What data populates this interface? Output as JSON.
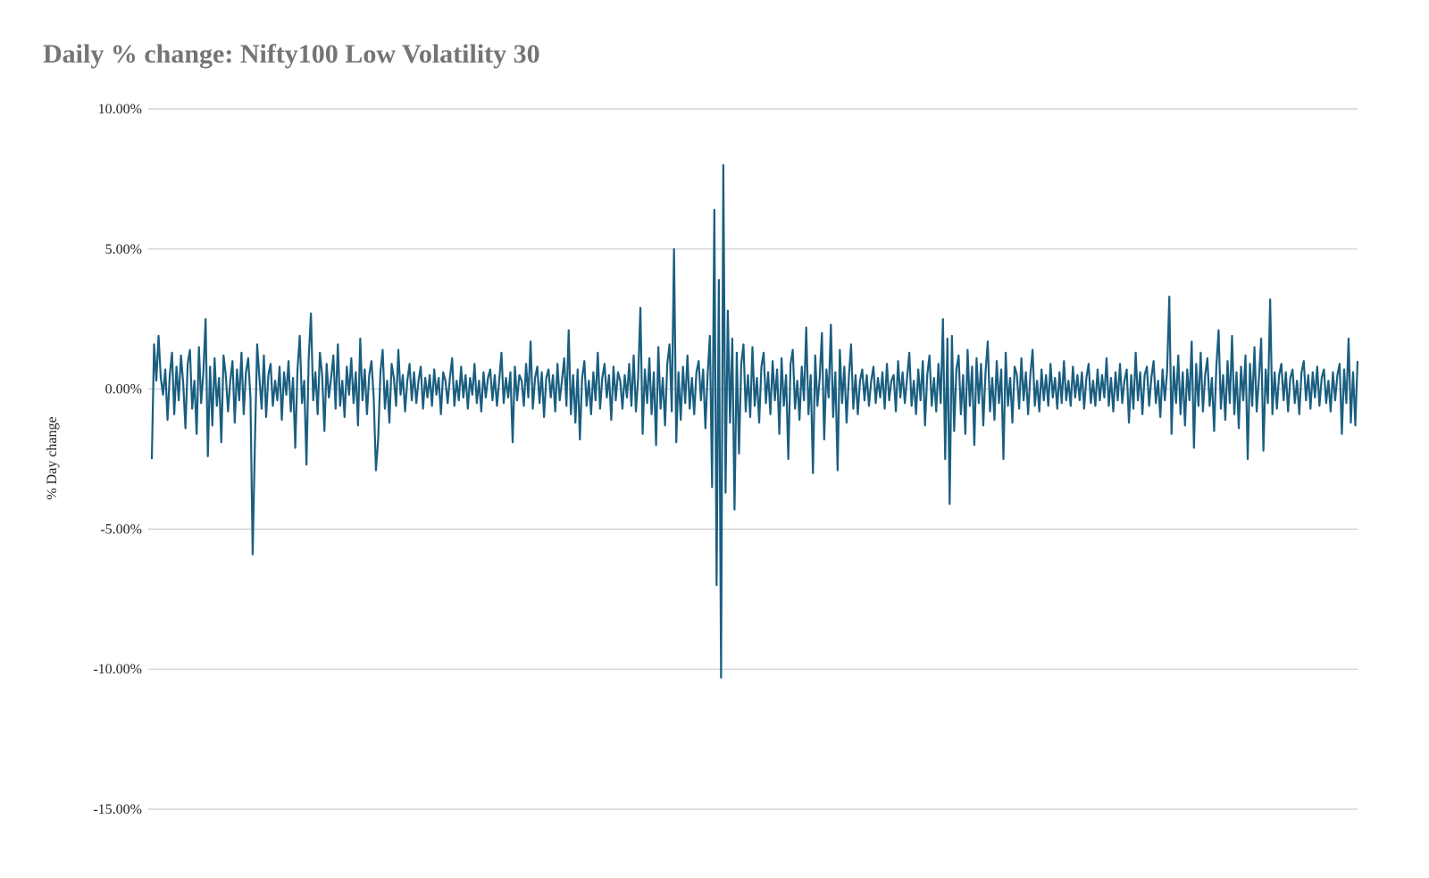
{
  "chart_data": {
    "type": "line",
    "title": "Daily % change: Nifty100 Low Volatility 30",
    "xlabel": "",
    "ylabel": "% Day change",
    "ylim": [
      -15,
      10
    ],
    "yticks": [
      10,
      5,
      0,
      -5,
      -10,
      -15
    ],
    "ytick_labels": [
      "10.00%",
      "5.00%",
      "0.00%",
      "-5.00%",
      "-10.00%",
      "-15.00%"
    ],
    "grid": true,
    "legend": "none",
    "line_color": "#1a5e80",
    "grid_color": "#cccccc",
    "series": [
      {
        "values": [
          -2.5,
          1.6,
          0.3,
          1.9,
          0.4,
          -0.2,
          0.7,
          -1.1,
          0.5,
          1.3,
          -0.9,
          0.8,
          -0.4,
          1.2,
          0.2,
          -1.4,
          0.9,
          1.4,
          -0.7,
          0.3,
          -1.6,
          1.5,
          -0.5,
          0.6,
          2.5,
          -2.4,
          0.8,
          -1.3,
          1.1,
          -0.6,
          0.4,
          -1.9,
          1.2,
          0.5,
          -0.8,
          0.3,
          1.0,
          -1.2,
          0.7,
          -0.4,
          1.3,
          -0.9,
          0.6,
          1.1,
          -0.3,
          -5.9,
          -1.9,
          1.6,
          0.4,
          -0.7,
          1.2,
          -1.0,
          0.5,
          0.9,
          -0.6,
          0.3,
          -0.4,
          0.8,
          -1.1,
          0.6,
          -0.2,
          1.0,
          -0.8,
          0.4,
          -2.1,
          0.7,
          1.9,
          -0.5,
          0.3,
          -2.7,
          1.1,
          2.7,
          -0.4,
          0.6,
          -0.9,
          1.3,
          0.5,
          -1.5,
          0.9,
          -0.3,
          0.4,
          1.2,
          -0.7,
          1.6,
          -0.6,
          0.3,
          -1.0,
          0.8,
          -0.2,
          1.1,
          -0.5,
          0.6,
          -1.3,
          1.8,
          -0.4,
          0.7,
          -0.9,
          0.5,
          1.0,
          -0.3,
          -2.9,
          -1.8,
          0.6,
          1.4,
          -0.7,
          0.3,
          -1.2,
          0.9,
          0.4,
          -0.6,
          1.4,
          -0.2,
          0.5,
          -0.8,
          0.3,
          0.9,
          -0.4,
          0.6,
          -0.5,
          0.3,
          0.8,
          -0.7,
          0.4,
          -0.3,
          0.5,
          -0.6,
          0.7,
          -0.2,
          0.4,
          -0.9,
          0.6,
          0.3,
          -0.5,
          0.4,
          1.1,
          -0.6,
          0.3,
          -0.4,
          0.8,
          -0.3,
          0.5,
          -0.7,
          0.4,
          -0.2,
          0.9,
          -0.5,
          0.3,
          -0.8,
          0.6,
          -0.3,
          0.4,
          0.7,
          -0.4,
          0.5,
          -0.6,
          0.3,
          1.3,
          -0.5,
          0.4,
          -0.3,
          0.6,
          -1.9,
          0.8,
          -0.4,
          0.5,
          0.3,
          -0.6,
          0.9,
          -0.3,
          1.7,
          -0.7,
          0.4,
          0.8,
          -0.5,
          0.6,
          -1.0,
          0.4,
          0.7,
          -0.3,
          0.5,
          -0.8,
          0.9,
          -0.4,
          0.3,
          1.1,
          -0.6,
          2.1,
          -0.9,
          0.5,
          -1.2,
          0.7,
          -1.8,
          0.4,
          1.0,
          -0.6,
          0.3,
          -0.9,
          0.6,
          -0.4,
          1.3,
          -0.7,
          0.4,
          0.9,
          -0.3,
          0.5,
          -1.1,
          0.8,
          -0.4,
          0.6,
          0.3,
          -0.7,
          0.5,
          -0.3,
          0.9,
          -0.6,
          1.2,
          -0.8,
          0.4,
          2.9,
          -1.6,
          0.7,
          -0.5,
          1.1,
          -0.9,
          0.6,
          -2.0,
          1.5,
          -0.7,
          0.4,
          -1.3,
          0.9,
          1.6,
          -0.8,
          5.0,
          -1.9,
          0.6,
          -1.1,
          0.8,
          -0.5,
          1.2,
          -0.7,
          0.4,
          -0.9,
          0.6,
          1.0,
          -0.4,
          0.7,
          -1.4,
          0.5,
          1.9,
          -3.5,
          6.4,
          -7.0,
          3.9,
          -10.3,
          8.0,
          -3.7,
          2.8,
          -1.2,
          1.8,
          -4.3,
          1.3,
          -2.3,
          0.9,
          1.6,
          -0.8,
          0.5,
          -1.0,
          1.5,
          -0.6,
          0.4,
          -1.2,
          0.8,
          1.3,
          -0.5,
          0.6,
          -0.9,
          1.0,
          -0.4,
          0.7,
          -1.6,
          1.1,
          -0.6,
          0.5,
          -2.5,
          0.9,
          1.4,
          -0.7,
          0.3,
          -1.1,
          0.8,
          -0.4,
          2.2,
          -0.9,
          0.5,
          -3.0,
          1.2,
          -0.6,
          0.4,
          2.0,
          -1.8,
          0.7,
          -0.3,
          2.3,
          -1.0,
          0.6,
          -2.9,
          1.4,
          -0.5,
          0.8,
          -1.2,
          0.4,
          1.6,
          -0.7,
          0.5,
          -0.9,
          0.3,
          0.7,
          -0.4,
          0.5,
          -0.6,
          0.3,
          0.8,
          -0.5,
          0.4,
          -0.3,
          0.6,
          -0.7,
          0.9,
          -0.4,
          0.3,
          0.5,
          -0.8,
          1.0,
          -0.3,
          0.6,
          -0.5,
          0.4,
          1.3,
          -0.6,
          0.3,
          -0.9,
          0.7,
          -0.4,
          1.0,
          -1.3,
          0.5,
          1.2,
          -0.6,
          0.4,
          -0.8,
          0.9,
          -0.5,
          2.5,
          -2.5,
          1.8,
          -4.1,
          1.9,
          -1.5,
          0.7,
          1.2,
          -0.9,
          0.5,
          -1.6,
          1.4,
          -0.6,
          0.8,
          -2.0,
          1.1,
          -0.5,
          0.9,
          -1.3,
          0.6,
          1.7,
          -0.8,
          0.4,
          -1.1,
          1.0,
          -0.5,
          0.7,
          -2.5,
          1.3,
          -0.6,
          0.4,
          -1.2,
          0.8,
          0.5,
          -0.7,
          1.1,
          -0.4,
          0.6,
          -0.9,
          0.5,
          1.4,
          -0.6,
          0.3,
          -0.8,
          0.7,
          -0.4,
          0.5,
          -0.6,
          0.9,
          -0.3,
          0.4,
          -0.7,
          0.6,
          -0.5,
          1.0,
          -0.4,
          0.3,
          -0.6,
          0.8,
          -0.3,
          0.5,
          -0.4,
          0.6,
          -0.7,
          0.4,
          0.9,
          -0.5,
          0.3,
          -0.6,
          0.7,
          -0.4,
          0.5,
          -0.3,
          1.1,
          -0.6,
          0.4,
          -0.8,
          0.6,
          -0.4,
          0.9,
          -0.5,
          0.3,
          0.7,
          -1.2,
          0.5,
          -0.7,
          1.3,
          -0.4,
          0.6,
          -0.9,
          0.5,
          0.8,
          -0.6,
          0.4,
          1.0,
          -0.5,
          0.3,
          -1.0,
          0.7,
          -0.4,
          0.6,
          3.3,
          -1.6,
          0.8,
          -0.5,
          1.2,
          -0.9,
          0.6,
          -1.3,
          0.7,
          -0.4,
          1.7,
          -2.1,
          0.9,
          -0.6,
          1.3,
          -0.8,
          0.5,
          1.1,
          -0.6,
          0.4,
          -1.5,
          0.8,
          2.1,
          -0.7,
          0.5,
          -1.1,
          1.0,
          -0.5,
          1.9,
          -0.9,
          0.6,
          -1.4,
          0.8,
          -0.4,
          1.2,
          -2.5,
          0.9,
          -0.6,
          1.5,
          -0.8,
          0.4,
          1.8,
          -2.2,
          0.7,
          -0.5,
          3.2,
          -0.9,
          0.6,
          -0.7,
          0.5,
          0.9,
          -0.4,
          0.6,
          -0.8,
          0.4,
          0.7,
          -0.5,
          0.3,
          -0.9,
          0.6,
          1.0,
          -0.4,
          0.5,
          -0.7,
          0.6,
          -0.3,
          0.8,
          -0.6,
          0.4,
          0.7,
          -0.5,
          0.3,
          -0.8,
          0.6,
          -0.4,
          0.5,
          0.9,
          -1.6,
          0.7,
          -0.5,
          1.8,
          -1.2,
          0.6,
          -1.3,
          1.0
        ]
      }
    ]
  }
}
